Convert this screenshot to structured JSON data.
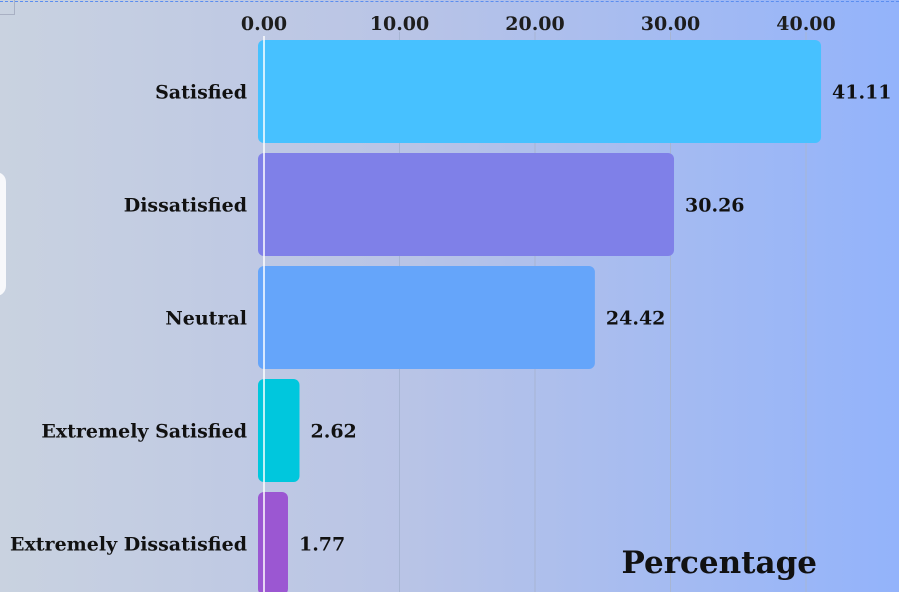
{
  "chart_data": {
    "type": "bar",
    "orientation": "horizontal",
    "categories": [
      "Satisfied",
      "Dissatisfied",
      "Neutral",
      "Extremely Satisfied",
      "Extremely Dissatisfied"
    ],
    "values": [
      41.11,
      30.26,
      24.42,
      2.62,
      1.77
    ],
    "value_labels": [
      "41.11",
      "30.26",
      "24.42",
      "2.62",
      "1.77"
    ],
    "colors": [
      "#47c1ff",
      "#7f80e8",
      "#65a5fa",
      "#00c7dd",
      "#9b57d2"
    ],
    "xticks": [
      "0.00",
      "10.00",
      "20.00",
      "30.00",
      "40.00"
    ],
    "xtick_values": [
      0,
      10,
      20,
      30,
      40
    ],
    "xlim": [
      0,
      47
    ],
    "xaxis_position": "top",
    "xlabel": "Percentage",
    "title": "",
    "grid": true,
    "legend": "none"
  }
}
